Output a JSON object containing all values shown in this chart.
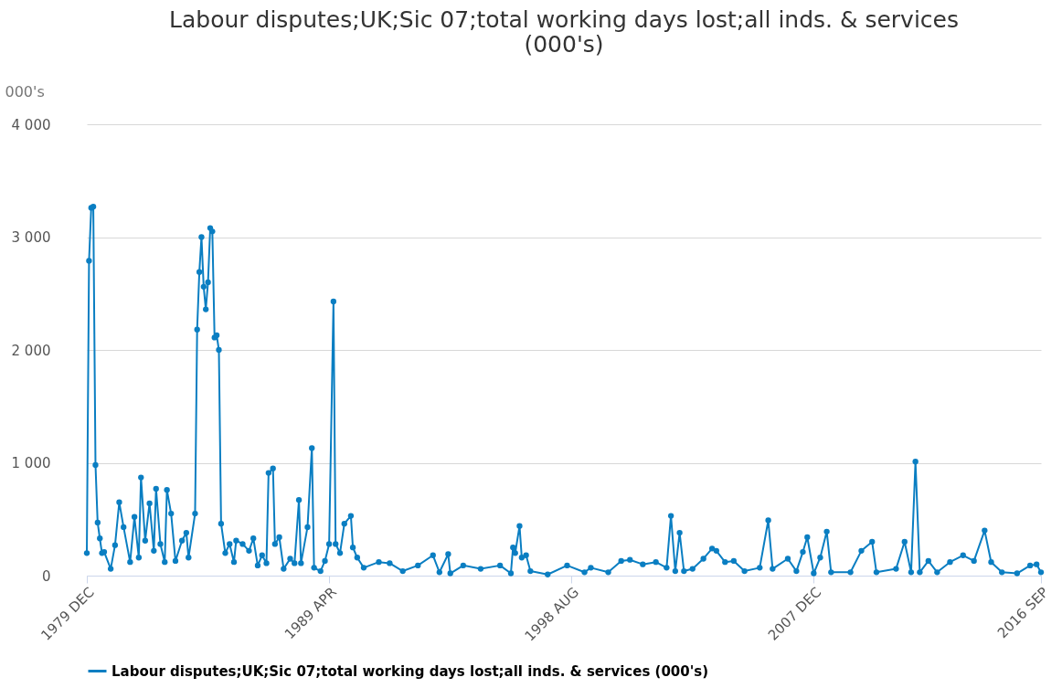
{
  "chart_data": {
    "type": "line",
    "title": "Labour disputes;UK;Sic 07;total working days lost;all inds. & services (000's)",
    "ylabel": "000's",
    "xlim": [
      "1979-12",
      "2016-09"
    ],
    "xticks": [
      {
        "value": "1979-12",
        "label": "1979 DEC"
      },
      {
        "value": "1989-04",
        "label": "1989 APR"
      },
      {
        "value": "1998-08",
        "label": "1998 AUG"
      },
      {
        "value": "2007-12",
        "label": "2007 DEC"
      },
      {
        "value": "2016-09",
        "label": "2016 SEP"
      }
    ],
    "ylim": [
      0,
      4000
    ],
    "yticks": [
      {
        "value": 0,
        "label": "0"
      },
      {
        "value": 1000,
        "label": "1 000"
      },
      {
        "value": 2000,
        "label": "2 000"
      },
      {
        "value": 3000,
        "label": "3 000"
      },
      {
        "value": 4000,
        "label": "4 000"
      }
    ],
    "grid": "y",
    "legend": "bottom",
    "marker": "circle",
    "line_style": "solid",
    "series": [
      {
        "name": "Labour disputes;UK;Sic 07;total working days lost;all inds. & services (000's)",
        "color": "#0a7ec2",
        "x": [
          "1979-12",
          "1980-01",
          "1980-02",
          "1980-03",
          "1980-04",
          "1980-05",
          "1980-06",
          "1980-07",
          "1980-08",
          "1980-11",
          "1981-01",
          "1981-03",
          "1981-05",
          "1981-08",
          "1981-10",
          "1981-12",
          "1982-01",
          "1982-03",
          "1982-05",
          "1982-07",
          "1982-08",
          "1982-10",
          "1982-12",
          "1983-01",
          "1983-03",
          "1983-05",
          "1983-08",
          "1983-10",
          "1983-11",
          "1984-02",
          "1984-03",
          "1984-04",
          "1984-05",
          "1984-06",
          "1984-07",
          "1984-08",
          "1984-09",
          "1984-10",
          "1984-11",
          "1984-12",
          "1985-01",
          "1985-02",
          "1985-04",
          "1985-06",
          "1985-08",
          "1985-09",
          "1985-12",
          "1986-03",
          "1986-05",
          "1986-07",
          "1986-09",
          "1986-11",
          "1986-12",
          "1987-02",
          "1987-03",
          "1987-05",
          "1987-07",
          "1987-10",
          "1987-12",
          "1988-02",
          "1988-03",
          "1988-06",
          "1988-08",
          "1988-09",
          "1988-12",
          "1989-02",
          "1989-04",
          "1989-06",
          "1989-07",
          "1989-09",
          "1989-11",
          "1990-02",
          "1990-03",
          "1990-05",
          "1990-08",
          "1991-03",
          "1991-08",
          "1992-02",
          "1992-09",
          "1993-04",
          "1993-07",
          "1993-11",
          "1993-12",
          "1994-06",
          "1995-02",
          "1995-11",
          "1996-04",
          "1996-05",
          "1996-06",
          "1996-08",
          "1996-09",
          "1996-11",
          "1997-01",
          "1997-09",
          "1998-06",
          "1999-02",
          "1999-05",
          "2000-01",
          "2000-07",
          "2000-11",
          "2001-05",
          "2001-11",
          "2002-04",
          "2002-06",
          "2002-08",
          "2002-10",
          "2002-12",
          "2003-04",
          "2003-09",
          "2004-01",
          "2004-03",
          "2004-07",
          "2004-11",
          "2005-04",
          "2005-11",
          "2006-03",
          "2006-05",
          "2006-12",
          "2007-04",
          "2007-07",
          "2007-09",
          "2007-12",
          "2008-03",
          "2008-06",
          "2008-08",
          "2009-05",
          "2009-10",
          "2010-03",
          "2010-05",
          "2011-02",
          "2011-06",
          "2011-09",
          "2011-11",
          "2012-01",
          "2012-05",
          "2012-09",
          "2013-03",
          "2013-09",
          "2014-02",
          "2014-07",
          "2014-10",
          "2015-03",
          "2015-10",
          "2016-04",
          "2016-07",
          "2016-09"
        ],
        "values": [
          200,
          2790,
          3260,
          3270,
          980,
          470,
          330,
          200,
          210,
          60,
          270,
          650,
          430,
          120,
          520,
          160,
          870,
          310,
          640,
          220,
          770,
          280,
          120,
          760,
          550,
          130,
          310,
          380,
          160,
          550,
          2180,
          2690,
          3000,
          2560,
          2360,
          2600,
          3080,
          3050,
          2110,
          2130,
          2000,
          460,
          200,
          280,
          120,
          310,
          280,
          220,
          330,
          90,
          180,
          110,
          910,
          950,
          280,
          340,
          60,
          150,
          110,
          670,
          110,
          430,
          1130,
          70,
          40,
          130,
          280,
          2430,
          280,
          200,
          460,
          530,
          250,
          160,
          70,
          120,
          110,
          40,
          90,
          180,
          30,
          190,
          20,
          90,
          60,
          90,
          20,
          250,
          200,
          440,
          160,
          180,
          40,
          10,
          90,
          30,
          70,
          30,
          130,
          140,
          100,
          120,
          70,
          530,
          40,
          380,
          40,
          60,
          150,
          240,
          220,
          120,
          130,
          40,
          70,
          490,
          60,
          150,
          40,
          210,
          340,
          20,
          160,
          390,
          30,
          30,
          220,
          300,
          30,
          60,
          300,
          30,
          1010,
          30,
          130,
          30,
          120,
          180,
          130,
          400,
          120,
          30,
          20,
          90,
          100,
          30
        ]
      }
    ]
  }
}
